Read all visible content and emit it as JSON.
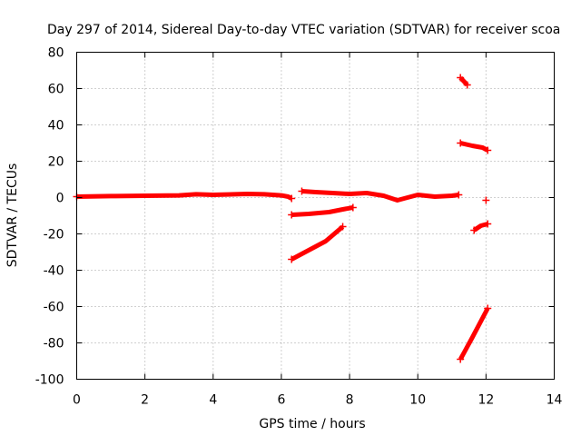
{
  "chart_data": {
    "type": "scatter",
    "title": "Day 297 of 2014, Sidereal Day-to-day VTEC variation (SDTVAR) for receiver scoa",
    "xlabel": "GPS time / hours",
    "ylabel": "SDTVAR / TECUs",
    "xlim": [
      0,
      14
    ],
    "ylim": [
      -100,
      80
    ],
    "x_ticks": [
      "0",
      "2",
      "4",
      "6",
      "8",
      "10",
      "12",
      "14"
    ],
    "y_ticks": [
      "-100",
      "-80",
      "-60",
      "-40",
      "-20",
      "0",
      "20",
      "40",
      "60",
      "80"
    ],
    "grid": true,
    "legend": "none",
    "color": "#ff0000",
    "series": [
      {
        "x": [
          0,
          1,
          2,
          3,
          3.5,
          4,
          5,
          5.5,
          6,
          6.2,
          6.3
        ],
        "y": [
          0.5,
          0.8,
          1,
          1.2,
          1.8,
          1.5,
          2,
          1.8,
          1.2,
          0.5,
          -0.5
        ]
      },
      {
        "x": [
          6.3,
          6.8,
          7.4,
          7.8,
          8.1
        ],
        "y": [
          -9.5,
          -9,
          -8,
          -6.5,
          -5.5
        ]
      },
      {
        "x": [
          6.3,
          6.8,
          7.3,
          7.8
        ],
        "y": [
          -34,
          -29,
          -24,
          -16
        ]
      },
      {
        "x": [
          6.6,
          7.0,
          7.5,
          8.0,
          8.5,
          9.0,
          9.4,
          9.7,
          10.0,
          10.5,
          11.0,
          11.2
        ],
        "y": [
          3.5,
          3,
          2.5,
          2,
          2.5,
          1,
          -1.5,
          0,
          1.5,
          0.5,
          1,
          1.5
        ]
      },
      {
        "x": [
          11.25,
          11.45
        ],
        "y": [
          66,
          62
        ]
      },
      {
        "x": [
          11.25,
          11.6,
          11.9,
          12.05
        ],
        "y": [
          30,
          28.5,
          27.5,
          26
        ]
      },
      {
        "x": [
          12.0
        ],
        "y": [
          -1.5
        ]
      },
      {
        "x": [
          11.65,
          11.85,
          12.05
        ],
        "y": [
          -18,
          -15.5,
          -14.5
        ]
      },
      {
        "x": [
          11.25,
          11.6,
          12.05
        ],
        "y": [
          -89,
          -77,
          -61
        ]
      }
    ]
  }
}
